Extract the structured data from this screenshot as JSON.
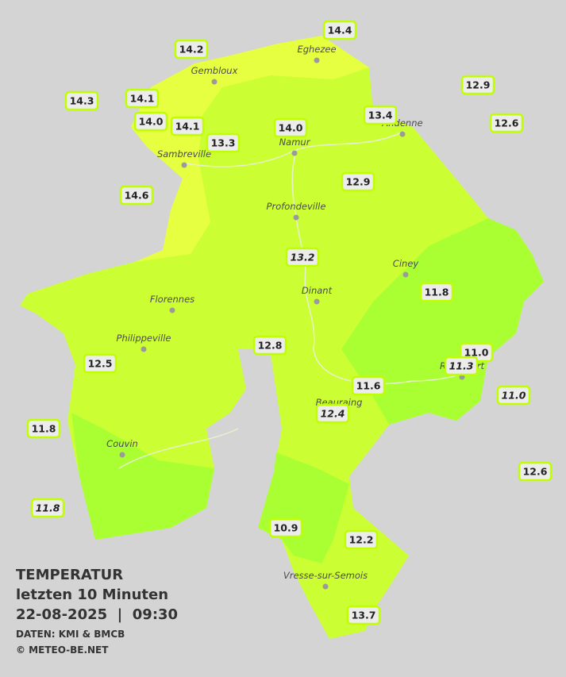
{
  "title": {
    "line1": "TEMPERATUR",
    "line2": "letzten 10 Minuten",
    "line3": "22-08-2025  |  09:30",
    "source": "DATEN: KMI & BMCB",
    "copyright": "© METEO-BE.NET"
  },
  "cities": [
    "Eghezee",
    "Gembloux",
    "Andenne",
    "Namur",
    "Sambreville",
    "Profondeville",
    "Ciney",
    "Dinant",
    "Florennes",
    "Philippeville",
    "Rochefort",
    "Beauraing",
    "Couvin",
    "Vresse-sur-Semois"
  ],
  "stations": [
    "14.4",
    "14.2",
    "12.9",
    "14.3",
    "14.1",
    "13.4",
    "12.6",
    "14.0",
    "14.1",
    "14.0",
    "13.3",
    "12.9",
    "14.6",
    "13.2",
    "11.8",
    "12.8",
    "11.0",
    "11.3",
    "12.5",
    "11.6",
    "11.0",
    "12.4",
    "11.8",
    "12.6",
    "11.8",
    "10.9",
    "12.2",
    "13.7"
  ]
}
